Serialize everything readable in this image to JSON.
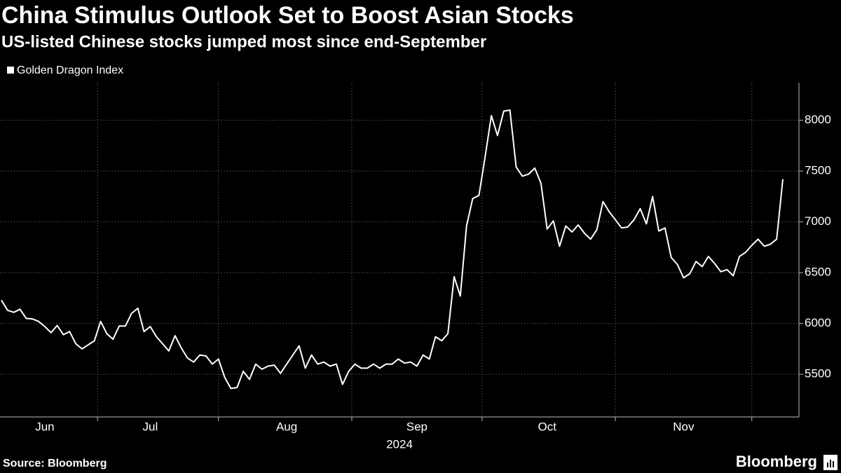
{
  "chart_data": {
    "type": "line",
    "title": "China Stimulus Outlook Set to Boost Asian Stocks",
    "subtitle": "US-listed Chinese stocks jumped most since end-September",
    "source": "Source: Bloomberg",
    "brand": "Bloomberg",
    "xlabel": "2024",
    "categories": [
      null,
      null,
      null,
      null,
      null,
      null,
      null,
      "Jun",
      null,
      null,
      null,
      null,
      null,
      null,
      null,
      null,
      null,
      null,
      null,
      null,
      null,
      null,
      null,
      null,
      "Jul",
      null,
      null,
      null,
      null,
      null,
      null,
      null,
      null,
      null,
      null,
      null,
      null,
      null,
      null,
      null,
      null,
      null,
      null,
      null,
      null,
      null,
      "Aug",
      null,
      null,
      null,
      null,
      null,
      null,
      null,
      null,
      null,
      null,
      null,
      null,
      null,
      null,
      null,
      null,
      null,
      null,
      null,
      null,
      "Sep",
      null,
      null,
      null,
      null,
      null,
      null,
      null,
      null,
      null,
      null,
      null,
      null,
      null,
      null,
      null,
      null,
      null,
      null,
      null,
      null,
      "Oct",
      null,
      null,
      null,
      null,
      null,
      null,
      null,
      null,
      null,
      null,
      null,
      null,
      null,
      null,
      null,
      null,
      null,
      null,
      null,
      null,
      null,
      "Nov",
      null,
      null,
      null,
      null,
      null,
      null,
      null,
      null,
      null,
      null,
      null,
      null,
      null,
      null,
      null,
      null
    ],
    "series": [
      {
        "name": "Golden Dragon Index",
        "color": "#ffffff",
        "values": [
          6230,
          6130,
          6110,
          6140,
          6050,
          6045,
          6020,
          5970,
          5910,
          5980,
          5890,
          5920,
          5800,
          5750,
          5790,
          5830,
          6020,
          5900,
          5845,
          5975,
          5975,
          6100,
          6150,
          5920,
          5970,
          5870,
          5800,
          5730,
          5880,
          5760,
          5660,
          5620,
          5690,
          5680,
          5600,
          5650,
          5470,
          5360,
          5370,
          5530,
          5450,
          5600,
          5550,
          5580,
          5590,
          5510,
          5600,
          5690,
          5780,
          5560,
          5690,
          5600,
          5620,
          5580,
          5600,
          5400,
          5530,
          5600,
          5560,
          5560,
          5600,
          5560,
          5600,
          5600,
          5650,
          5610,
          5620,
          5580,
          5690,
          5650,
          5870,
          5830,
          5900,
          6460,
          6270,
          6960,
          7230,
          7260,
          7640,
          8045,
          7850,
          8090,
          8100,
          7540,
          7450,
          7470,
          7530,
          7380,
          6930,
          7010,
          6760,
          6960,
          6900,
          6970,
          6890,
          6830,
          6920,
          7200,
          7100,
          7020,
          6940,
          6950,
          7020,
          7130,
          6980,
          7250,
          6910,
          6940,
          6650,
          6580,
          6450,
          6490,
          6610,
          6560,
          6660,
          6590,
          6510,
          6530,
          6470,
          6660,
          6700,
          6770,
          6830,
          6760,
          6780,
          6830,
          7420
        ]
      }
    ],
    "ylim": [
      5080,
      8370
    ],
    "yticks": [
      5500,
      6000,
      6500,
      7000,
      7500,
      8000
    ],
    "grid": true,
    "legend": "top-left"
  }
}
